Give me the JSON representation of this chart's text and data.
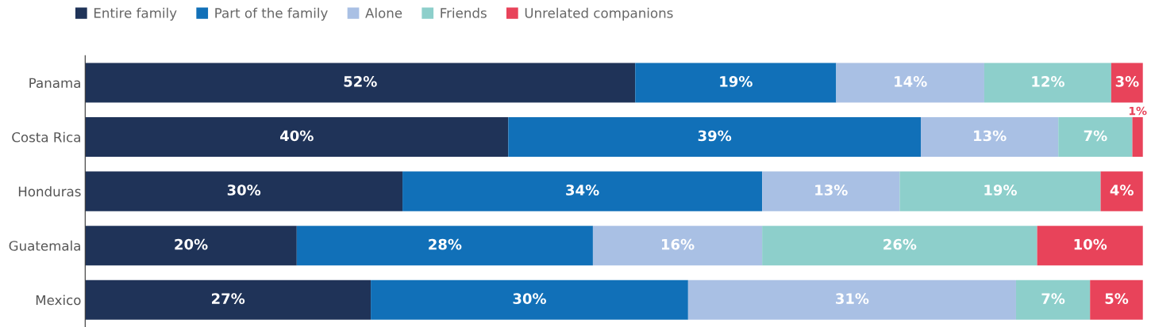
{
  "chart_data": {
    "type": "bar",
    "orientation": "horizontal",
    "stacked": true,
    "categories": [
      "Panama",
      "Costa Rica",
      "Honduras",
      "Guatemala",
      "Mexico"
    ],
    "xlim": [
      0,
      100
    ],
    "tick_labels": "y",
    "grid": false,
    "legend": "top left",
    "series": [
      {
        "name": "Entire family",
        "color": "#1f3358",
        "values": [
          52,
          40,
          30,
          20,
          27
        ],
        "value_labels": [
          "52%",
          "40%",
          "30%",
          "20%",
          "27%"
        ]
      },
      {
        "name": "Part of the family",
        "color": "#1170b8",
        "values": [
          19,
          39,
          34,
          28,
          30
        ],
        "value_labels": [
          "19%",
          "39%",
          "34%",
          "28%",
          "30%"
        ]
      },
      {
        "name": "Alone",
        "color": "#a9c0e4",
        "values": [
          14,
          13,
          13,
          16,
          31
        ],
        "value_labels": [
          "14%",
          "13%",
          "13%",
          "16%",
          "31%"
        ]
      },
      {
        "name": "Friends",
        "color": "#8dcfcb",
        "values": [
          12,
          7,
          19,
          26,
          7
        ],
        "value_labels": [
          "12%",
          "7%",
          "19%",
          "26%",
          "7%"
        ]
      },
      {
        "name": "Unrelated companions",
        "color": "#e8435a",
        "values": [
          3,
          1,
          4,
          10,
          5
        ],
        "value_labels": [
          "3%",
          "1%",
          "4%",
          "10%",
          "5%"
        ]
      }
    ]
  }
}
